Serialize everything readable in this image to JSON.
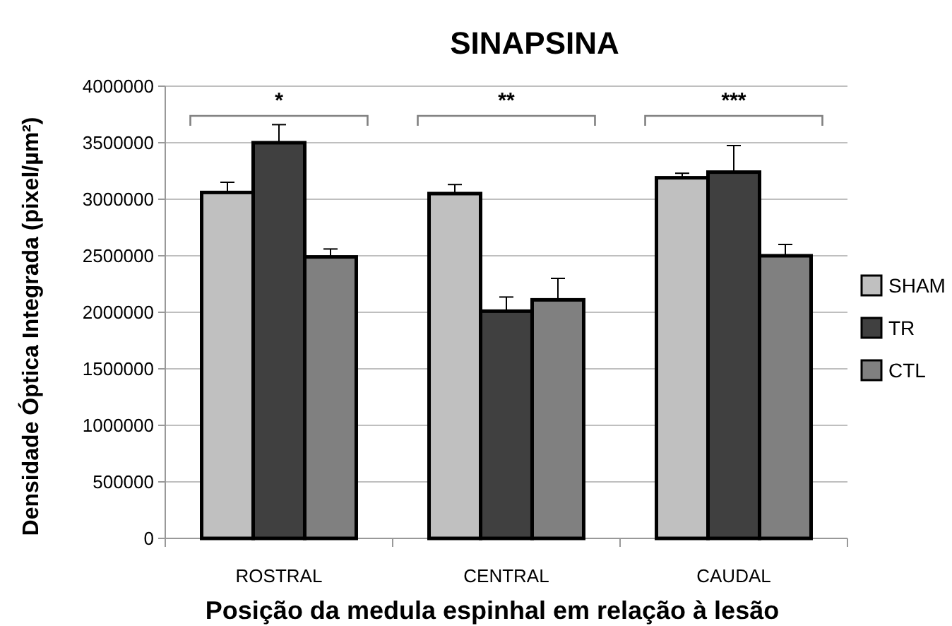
{
  "chart_data": {
    "type": "bar",
    "title": "SINAPSINA",
    "xlabel": "Posição da medula espinhal em relação à lesão",
    "ylabel": "Densidade Óptica Integrada  (pixel/µm²)",
    "categories": [
      "ROSTRAL",
      "CENTRAL",
      "CAUDAL"
    ],
    "series": [
      {
        "name": "SHAM",
        "color": "#c0c0c0",
        "values": [
          3060000,
          3050000,
          3190000
        ],
        "errors": [
          90000,
          80000,
          40000
        ]
      },
      {
        "name": "TR",
        "color": "#404040",
        "values": [
          3500000,
          2010000,
          3240000
        ],
        "errors": [
          160000,
          125000,
          235000
        ]
      },
      {
        "name": "CTL",
        "color": "#808080",
        "values": [
          2490000,
          2110000,
          2500000
        ],
        "errors": [
          70000,
          190000,
          100000
        ]
      }
    ],
    "ylim": [
      0,
      4000000
    ],
    "yticks": [
      0,
      500000,
      1000000,
      1500000,
      2000000,
      2500000,
      3000000,
      3500000,
      4000000
    ],
    "grid": "y",
    "legend": "right",
    "annotations": [
      "*",
      "**",
      "***"
    ]
  }
}
